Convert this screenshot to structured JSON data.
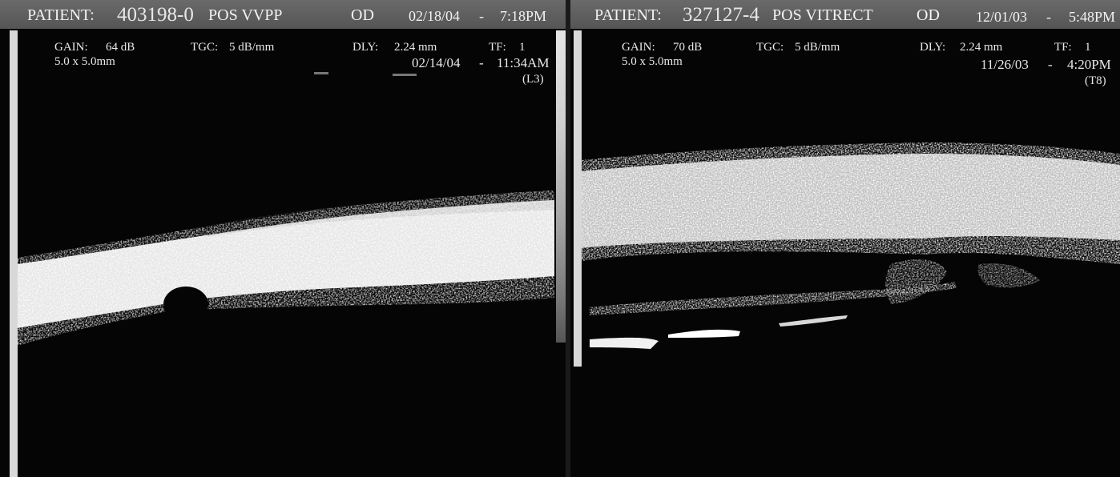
{
  "left_scan": {
    "patient_label": "PATIENT:",
    "patient_id": "403198-0",
    "procedure": "POS VVPP",
    "eye": "OD",
    "date": "02/18/04",
    "dash": "-",
    "time": "7:18PM",
    "gain_label": "GAIN:",
    "gain_value": "64 dB",
    "tgc_label": "TGC:",
    "tgc_value": "5 dB/mm",
    "dly_label": "DLY:",
    "dly_value": "2.24 mm",
    "tf_label": "TF:",
    "tf_value": "1",
    "field": "5.0 x 5.0mm",
    "prior_date": "02/14/04",
    "prior_dash": "-",
    "prior_time": "11:34AM",
    "code": "(L3)"
  },
  "right_scan": {
    "patient_label": "PATIENT:",
    "patient_id": "327127-4",
    "procedure": "POS VITRECT",
    "eye": "OD",
    "date": "12/01/03",
    "dash": "-",
    "time": "5:48PM",
    "gain_label": "GAIN:",
    "gain_value": "70 dB",
    "tgc_label": "TGC:",
    "tgc_value": "5 dB/mm",
    "dly_label": "DLY:",
    "dly_value": "2.24 mm",
    "tf_label": "TF:",
    "tf_value": "1",
    "field": "5.0 x 5.0mm",
    "prior_date": "11/26/03",
    "prior_dash": "-",
    "prior_time": "4:20PM",
    "code": "(T8)"
  }
}
